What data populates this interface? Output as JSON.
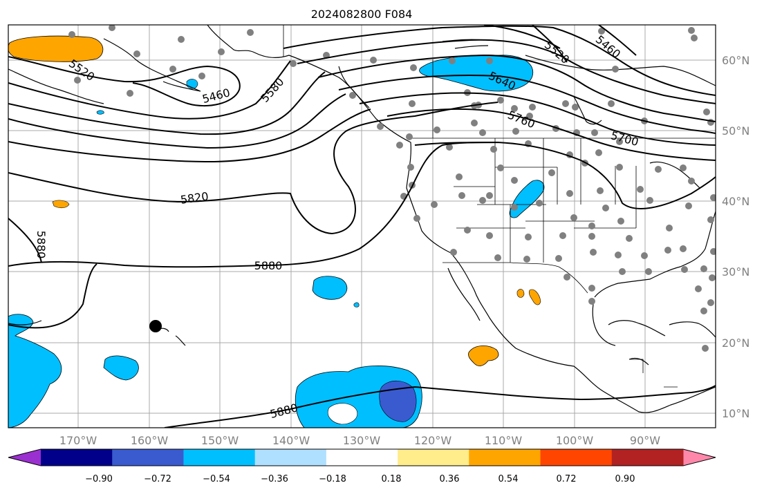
{
  "title": "2024082800 F084",
  "map": {
    "lon_labels": [
      "170°W",
      "160°W",
      "150°W",
      "140°W",
      "130°W",
      "120°W",
      "110°W",
      "100°W",
      "90°W"
    ],
    "lat_labels": [
      "60°N",
      "50°N",
      "40°N",
      "30°N",
      "20°N",
      "10°N"
    ],
    "contour_labels": [
      "5520",
      "5460",
      "5580",
      "5520",
      "5460",
      "5640",
      "5760",
      "5700",
      "5820",
      "5880",
      "5880",
      "5880"
    ]
  },
  "colorbar": {
    "tick_labels": [
      "−0.90",
      "−0.72",
      "−0.54",
      "−0.36",
      "−0.18",
      "0.18",
      "0.36",
      "0.54",
      "0.72",
      "0.90"
    ],
    "colors": [
      "#9b30d0",
      "#00008b",
      "#3a5bd0",
      "#00bfff",
      "#b0e0ff",
      "#ffffff",
      "#ffec8b",
      "#ffa500",
      "#ff4500",
      "#b22222",
      "#ff88aa"
    ]
  }
}
